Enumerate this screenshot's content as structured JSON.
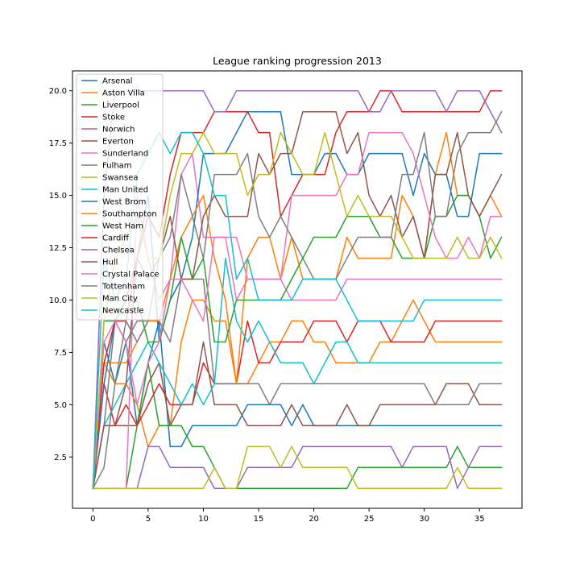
{
  "chart_data": {
    "type": "line",
    "title": "League ranking progression 2013",
    "xlabel": "",
    "ylabel": "",
    "xlim": [
      -1.85,
      38.85
    ],
    "ylim": [
      0.05,
      20.95
    ],
    "xticks": [
      0,
      5,
      10,
      15,
      20,
      25,
      30,
      35
    ],
    "xtick_labels": [
      "0",
      "5",
      "10",
      "15",
      "20",
      "25",
      "30",
      "35"
    ],
    "yticks": [
      2.5,
      5.0,
      7.5,
      10.0,
      12.5,
      15.0,
      17.5,
      20.0
    ],
    "ytick_labels": [
      "2.5",
      "5.0",
      "7.5",
      "10.0",
      "12.5",
      "15.0",
      "17.5",
      "20.0"
    ],
    "grid": false,
    "legend_position": "top-left",
    "x": [
      0,
      1,
      2,
      3,
      4,
      5,
      6,
      7,
      8,
      9,
      10,
      11,
      12,
      13,
      14,
      15,
      16,
      17,
      18,
      19,
      20,
      21,
      22,
      23,
      24,
      25,
      26,
      27,
      28,
      29,
      30,
      31,
      32,
      33,
      34,
      35,
      36,
      37
    ],
    "series": [
      {
        "name": "Arsenal",
        "color": "#1f77b4",
        "values": [
          1,
          8,
          6,
          8,
          4,
          7,
          9,
          3,
          3,
          4,
          4,
          4,
          4,
          4,
          5,
          5,
          5,
          5,
          4,
          5,
          4,
          4,
          4,
          4,
          4,
          4,
          4,
          4,
          4,
          4,
          4,
          4,
          4,
          4,
          4,
          4,
          4,
          4
        ]
      },
      {
        "name": "Aston Villa",
        "color": "#ff7f0e",
        "values": [
          1,
          7,
          6,
          6,
          5,
          3,
          4,
          4,
          8,
          10,
          10,
          9,
          9,
          6,
          6,
          7,
          8,
          8,
          9,
          9,
          8,
          8,
          7,
          7,
          7,
          7,
          8,
          8,
          9,
          10,
          9,
          8,
          8,
          8,
          8,
          8,
          8,
          8
        ]
      },
      {
        "name": "Liverpool",
        "color": "#2ca02c",
        "values": [
          1,
          1,
          1,
          1,
          4,
          7,
          4,
          4,
          4,
          3,
          3,
          2,
          1,
          1,
          1,
          1,
          1,
          1,
          1,
          1,
          1,
          1,
          1,
          1,
          2,
          2,
          2,
          2,
          2,
          2,
          2,
          2,
          2,
          3,
          2,
          2,
          2,
          2
        ]
      },
      {
        "name": "Stoke",
        "color": "#d62728",
        "values": [
          1,
          6,
          4,
          5,
          4,
          5,
          6,
          5,
          5,
          5,
          7,
          6,
          6,
          6,
          9,
          7,
          7,
          8,
          8,
          8,
          9,
          9,
          9,
          8,
          9,
          9,
          9,
          8,
          8,
          8,
          8,
          9,
          9,
          9,
          9,
          9,
          9,
          9
        ]
      },
      {
        "name": "Norwich",
        "color": "#9467bd",
        "values": [
          1,
          1,
          1,
          1,
          1,
          3,
          3,
          2,
          2,
          2,
          2,
          1,
          1,
          1,
          2,
          2,
          2,
          2,
          2,
          3,
          3,
          3,
          3,
          3,
          3,
          3,
          3,
          3,
          2,
          3,
          3,
          3,
          3,
          1,
          2,
          3,
          3,
          3
        ]
      },
      {
        "name": "Everton",
        "color": "#8c564b",
        "values": [
          1,
          4,
          4,
          4,
          4,
          6,
          7,
          4,
          5,
          5,
          8,
          5,
          5,
          5,
          4,
          4,
          4,
          4,
          5,
          4,
          4,
          4,
          4,
          5,
          4,
          4,
          5,
          5,
          5,
          5,
          5,
          5,
          6,
          6,
          6,
          5,
          5,
          5
        ]
      },
      {
        "name": "Sunderland",
        "color": "#e377c2",
        "values": [
          1,
          1,
          1,
          1,
          15,
          12,
          10,
          11,
          16,
          17,
          13,
          13,
          13,
          10,
          11,
          11,
          11,
          11,
          10,
          10,
          10,
          10,
          10,
          11,
          11,
          11,
          11,
          11,
          11,
          11,
          11,
          11,
          11,
          11,
          11,
          11,
          11,
          11
        ]
      },
      {
        "name": "Fulham",
        "color": "#7f7f7f",
        "values": [
          1,
          4,
          9,
          8,
          9,
          9,
          9,
          8,
          11,
          11,
          11,
          6,
          6,
          6,
          6,
          6,
          5,
          6,
          6,
          6,
          6,
          6,
          6,
          6,
          6,
          6,
          6,
          6,
          6,
          6,
          6,
          5,
          5,
          5,
          5,
          6,
          6,
          6
        ]
      },
      {
        "name": "Swansea",
        "color": "#bcbd22",
        "values": [
          1,
          1,
          1,
          1,
          1,
          1,
          1,
          1,
          1,
          1,
          1,
          2,
          1,
          1,
          3,
          3,
          3,
          2,
          3,
          2,
          2,
          2,
          2,
          2,
          1,
          1,
          1,
          1,
          1,
          1,
          1,
          1,
          1,
          2,
          1,
          1,
          1,
          1
        ]
      },
      {
        "name": "Man United",
        "color": "#17becf",
        "values": [
          1,
          4,
          5,
          6,
          7,
          8,
          7,
          6,
          5,
          6,
          5,
          6,
          12,
          9,
          8,
          9,
          8,
          7,
          7,
          7,
          6,
          7,
          8,
          8,
          7,
          7,
          7,
          7,
          7,
          7,
          7,
          7,
          7,
          7,
          7,
          7,
          7,
          7
        ]
      },
      {
        "name": "West Brom",
        "color": "#1f77b4",
        "values": [
          1,
          6,
          9,
          10,
          12,
          15,
          8,
          10,
          11,
          13,
          17,
          17,
          17,
          18,
          19,
          19,
          19,
          19,
          16,
          16,
          16,
          17,
          17,
          16,
          16,
          17,
          17,
          17,
          17,
          15,
          17,
          16,
          16,
          14,
          14,
          17,
          17,
          17
        ]
      },
      {
        "name": "Southampton",
        "color": "#ff7f0e",
        "values": [
          1,
          7,
          7,
          7,
          8,
          9,
          9,
          11,
          13,
          14,
          15,
          12,
          10,
          6,
          12,
          13,
          13,
          11,
          13,
          11,
          11,
          11,
          11,
          13,
          12,
          12,
          12,
          12,
          15,
          14,
          12,
          16,
          18,
          15,
          15,
          14,
          15,
          14
        ]
      },
      {
        "name": "West Ham",
        "color": "#2ca02c",
        "values": [
          1,
          9,
          9,
          10,
          10,
          8,
          8,
          10,
          13,
          11,
          12,
          8,
          8,
          10,
          10,
          10,
          10,
          10,
          11,
          12,
          13,
          13,
          13,
          14,
          14,
          14,
          13,
          13,
          12,
          12,
          12,
          14,
          14,
          15,
          15,
          14,
          12,
          13
        ]
      },
      {
        "name": "Cardiff",
        "color": "#d62728",
        "values": [
          1,
          7,
          9,
          9,
          12,
          14,
          13,
          16,
          18,
          18,
          18,
          19,
          19,
          19,
          19,
          18,
          18,
          14,
          15,
          16,
          16,
          16,
          18,
          19,
          19,
          19,
          20,
          20,
          19,
          19,
          19,
          19,
          19,
          19,
          19,
          19,
          20,
          20
        ]
      },
      {
        "name": "Chelsea",
        "color": "#9467bd",
        "values": [
          1,
          15,
          20,
          20,
          20,
          20,
          20,
          20,
          20,
          20,
          20,
          19,
          19,
          20,
          20,
          20,
          20,
          20,
          20,
          20,
          20,
          20,
          20,
          20,
          20,
          19,
          19,
          20,
          20,
          20,
          20,
          20,
          19,
          20,
          20,
          20,
          19,
          18
        ]
      },
      {
        "name": "Hull",
        "color": "#8c564b",
        "values": [
          1,
          4,
          4,
          6,
          12,
          11,
          12,
          14,
          11,
          11,
          14,
          15,
          14,
          14,
          14,
          17,
          16,
          17,
          17,
          19,
          19,
          19,
          19,
          17,
          18,
          15,
          14,
          15,
          13,
          14,
          12,
          16,
          16,
          18,
          15,
          14,
          15,
          16
        ]
      },
      {
        "name": "Crystal Palace",
        "color": "#e377c2",
        "values": [
          1,
          8,
          9,
          8,
          5,
          7,
          8,
          11,
          11,
          10,
          9,
          13,
          13,
          13,
          11,
          11,
          11,
          11,
          15,
          15,
          15,
          15,
          15,
          16,
          16,
          18,
          18,
          18,
          18,
          17,
          15,
          13,
          12,
          12,
          13,
          12,
          14,
          14
        ]
      },
      {
        "name": "Tottenham",
        "color": "#7f7f7f",
        "values": [
          1,
          2,
          6,
          9,
          8,
          9,
          12,
          13,
          16,
          14,
          12,
          16,
          16,
          16,
          17,
          14,
          13,
          14,
          13,
          12,
          11,
          11,
          11,
          12,
          13,
          13,
          13,
          13,
          16,
          16,
          18,
          14,
          14,
          17,
          18,
          18,
          18,
          19
        ]
      },
      {
        "name": "Man City",
        "color": "#bcbd22",
        "values": [
          1,
          9,
          12,
          13,
          14,
          12,
          12,
          15,
          17,
          17,
          18,
          17,
          17,
          17,
          15,
          16,
          16,
          18,
          17,
          16,
          16,
          18,
          16,
          14,
          15,
          14,
          14,
          14,
          13,
          12,
          12,
          12,
          12,
          13,
          12,
          12,
          13,
          12
        ]
      },
      {
        "name": "Newcastle",
        "color": "#17becf",
        "values": [
          1,
          12,
          10,
          11,
          16,
          17,
          18,
          17,
          18,
          18,
          17,
          15,
          15,
          11,
          12,
          10,
          10,
          10,
          10,
          11,
          11,
          11,
          11,
          10,
          9,
          9,
          9,
          9,
          9,
          9,
          10,
          10,
          10,
          10,
          10,
          10,
          10,
          10
        ]
      }
    ]
  }
}
